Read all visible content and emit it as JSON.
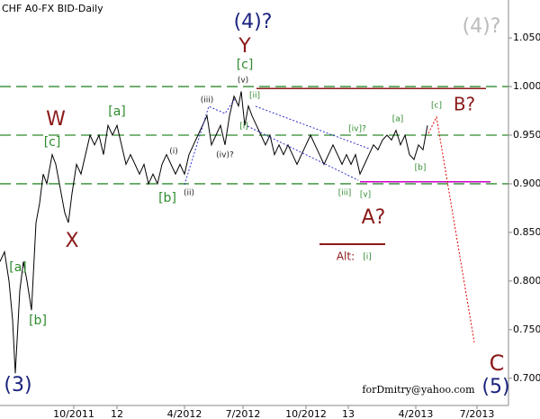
{
  "chart_data": {
    "type": "line",
    "title": "CHF A0-FX BID-Daily",
    "x": [
      0,
      5,
      10,
      14,
      17,
      22,
      26,
      30,
      35,
      40,
      44,
      48,
      52,
      58,
      62,
      66,
      72,
      76,
      80,
      85,
      90,
      95,
      100,
      105,
      110,
      115,
      120,
      125,
      130,
      135,
      140,
      145,
      150,
      155,
      160,
      165,
      170,
      175,
      180,
      185,
      190,
      195,
      200,
      205,
      210,
      215,
      220,
      225,
      230,
      235,
      240,
      245,
      250,
      255,
      260,
      265,
      268,
      272,
      276,
      280,
      285,
      290,
      295,
      300,
      305,
      310,
      315,
      320,
      325,
      330,
      335,
      340,
      345,
      350,
      355,
      360,
      365,
      370,
      375,
      380,
      385,
      390,
      395,
      400,
      405,
      410,
      415,
      420,
      425,
      430,
      435,
      440,
      445,
      450,
      455,
      460,
      465,
      470,
      475
    ],
    "series": [
      {
        "color": "#000000",
        "values": [
          0.82,
          0.83,
          0.8,
          0.76,
          0.705,
          0.79,
          0.82,
          0.8,
          0.77,
          0.86,
          0.88,
          0.91,
          0.9,
          0.93,
          0.92,
          0.9,
          0.87,
          0.86,
          0.89,
          0.92,
          0.91,
          0.93,
          0.95,
          0.94,
          0.95,
          0.93,
          0.96,
          0.95,
          0.96,
          0.94,
          0.92,
          0.93,
          0.92,
          0.91,
          0.92,
          0.9,
          0.91,
          0.9,
          0.92,
          0.93,
          0.92,
          0.91,
          0.92,
          0.91,
          0.93,
          0.94,
          0.95,
          0.96,
          0.97,
          0.94,
          0.95,
          0.96,
          0.94,
          0.97,
          0.99,
          0.98,
          0.995,
          0.96,
          0.98,
          0.97,
          0.96,
          0.95,
          0.94,
          0.95,
          0.93,
          0.94,
          0.93,
          0.94,
          0.93,
          0.92,
          0.93,
          0.94,
          0.95,
          0.94,
          0.93,
          0.92,
          0.93,
          0.94,
          0.93,
          0.92,
          0.93,
          0.92,
          0.93,
          0.91,
          0.92,
          0.93,
          0.94,
          0.935,
          0.945,
          0.95,
          0.945,
          0.955,
          0.94,
          0.95,
          0.93,
          0.925,
          0.94,
          0.935,
          0.96
        ]
      }
    ],
    "xlim": [
      0,
      565
    ],
    "ylim": [
      0.672,
      1.089
    ],
    "xticks": [
      {
        "value": 82,
        "label": "10/2011"
      },
      {
        "value": 130,
        "label": "12"
      },
      {
        "value": 205,
        "label": "4/2012"
      },
      {
        "value": 270,
        "label": "7/2012"
      },
      {
        "value": 340,
        "label": "10/2012"
      },
      {
        "value": 387,
        "label": "13"
      },
      {
        "value": 462,
        "label": "4/2013"
      },
      {
        "value": 530,
        "label": "7/2013"
      }
    ],
    "yticks": [
      {
        "value": 0.7,
        "label": "0.700"
      },
      {
        "value": 0.75,
        "label": "0.750"
      },
      {
        "value": 0.8,
        "label": "0.800"
      },
      {
        "value": 0.85,
        "label": "0.850"
      },
      {
        "value": 0.9,
        "label": "0.900"
      },
      {
        "value": 0.95,
        "label": "0.950"
      },
      {
        "value": 1.0,
        "label": "1.000"
      },
      {
        "value": 1.05,
        "label": "1.050"
      }
    ],
    "levels": [
      {
        "value": 1.0,
        "color": "#2e8b2e"
      },
      {
        "value": 0.95,
        "color": "#2e8b2e"
      },
      {
        "value": 0.9,
        "color": "#2e8b2e"
      }
    ],
    "segments": [
      {
        "value": 0.998,
        "from": 285,
        "to": 540,
        "color": "#8b1a1a"
      },
      {
        "value": 0.902,
        "from": 400,
        "to": 545,
        "color": "#cc00cc"
      }
    ],
    "annotations": [
      "(4)?",
      "(4)?",
      "Y",
      "[c]",
      "(v)",
      "[ii]",
      "(iii)",
      "[i]",
      "(i)",
      "(iv)?",
      "(ii)",
      "[b]",
      "[a]",
      "W",
      "[c]",
      "X",
      "[iv]?",
      "[a]",
      "[c]",
      "B?",
      "[b]",
      "[iii]",
      "[v]",
      "A?",
      "Alt:",
      "[i]",
      "[a]",
      "[b]",
      "(3)",
      "C",
      "(5)",
      "forDmitry@yahoo.com"
    ]
  }
}
